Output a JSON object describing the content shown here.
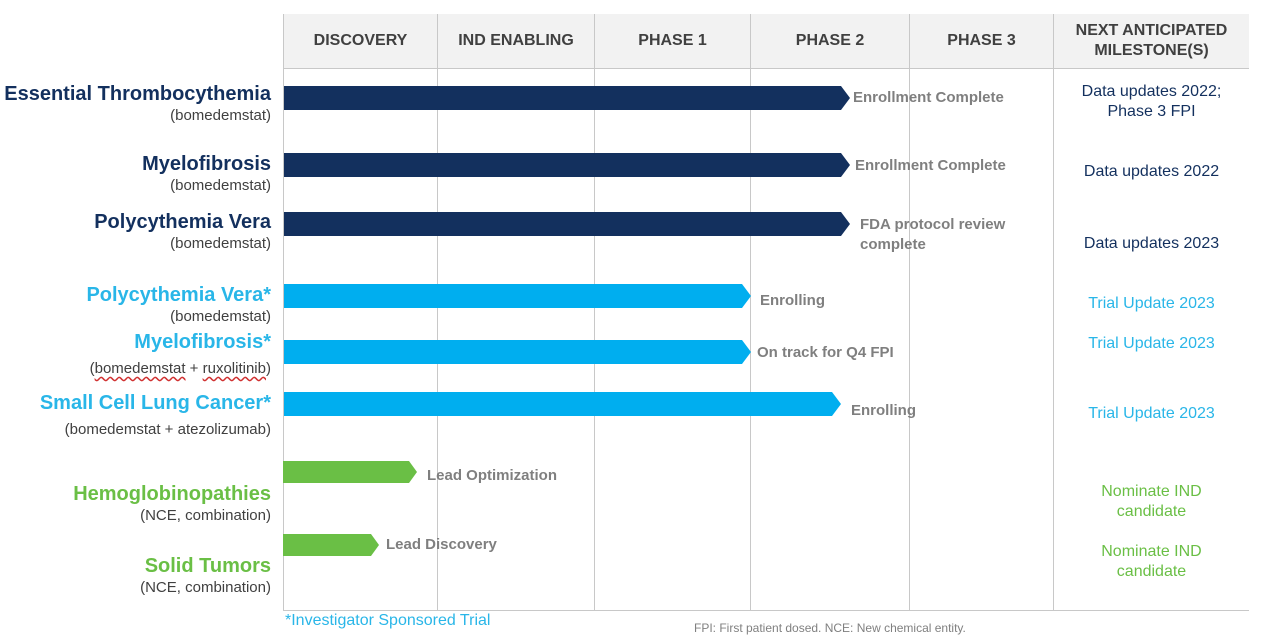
{
  "columns": [
    "DISCOVERY",
    "IND ENABLING",
    "PHASE 1",
    "PHASE 2",
    "PHASE 3",
    "NEXT ANTICIPATED MILESTONE(S)"
  ],
  "colors": {
    "dark": "#13305e",
    "light": "#00aeef",
    "green": "#6abf45"
  },
  "programs": [
    {
      "name": "Essential Thrombocythemia",
      "sub": "(bomedemstat)",
      "stage": "Phase 2",
      "status": "Enrollment Complete",
      "milestone": "Data updates 2022; Phase 3 FPI",
      "color": "dark"
    },
    {
      "name": "Myelofibrosis",
      "sub": "(bomedemstat)",
      "stage": "Phase 2",
      "status": "Enrollment Complete",
      "milestone": "Data updates 2022",
      "color": "dark"
    },
    {
      "name": "Polycythemia Vera",
      "sub": "(bomedemstat)",
      "stage": "Phase 2",
      "status": "FDA protocol review complete",
      "milestone": "Data updates 2023",
      "color": "dark"
    },
    {
      "name": "Polycythemia Vera*",
      "sub": "(bomedemstat)",
      "stage": "Phase 1",
      "status": "Enrolling",
      "milestone": "Trial Update 2023",
      "color": "light"
    },
    {
      "name": "Myelofibrosis*",
      "sub_parts": [
        "(",
        "bomedemstat",
        " + ",
        "ruxolitinib",
        ")"
      ],
      "stage": "Phase 1",
      "status": "On track for Q4 FPI",
      "milestone": "Trial Update 2023",
      "color": "light"
    },
    {
      "name": "Small Cell Lung Cancer*",
      "sub": "(bomedemstat + atezolizumab)",
      "stage": "Phase 2",
      "status": "Enrolling",
      "milestone": "Trial Update 2023",
      "color": "light"
    },
    {
      "name": "Hemoglobinopathies",
      "sub": "(NCE, combination)",
      "stage": "Discovery",
      "status": "Lead Optimization",
      "milestone": "Nominate IND candidate",
      "color": "green"
    },
    {
      "name": "Solid Tumors",
      "sub": "(NCE, combination)",
      "stage": "Discovery",
      "status": "Lead Discovery",
      "milestone": "Nominate IND candidate",
      "color": "green"
    }
  ],
  "footnote": "*Investigator Sponsored Trial",
  "abbreviations": "FPI: First patient dosed.  NCE: New chemical entity."
}
